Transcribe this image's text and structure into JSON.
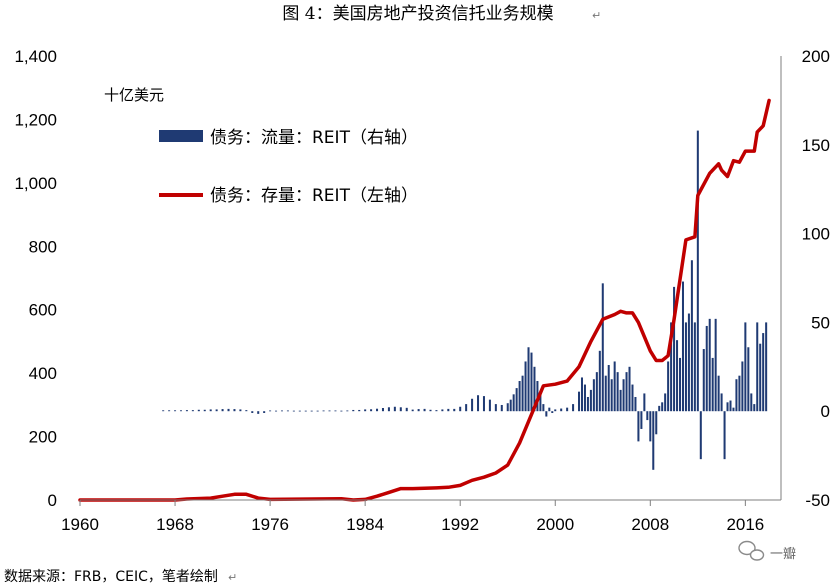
{
  "page": {
    "title": "图 4：美国房地产投资信托业务规模",
    "return_mark": "↵",
    "unit_label": "十亿美元",
    "source": "数据来源：FRB，CEIC，笔者绘制",
    "watermark": "一瓣"
  },
  "chart_data": {
    "type": "bar+line",
    "title": "图 4：美国房地产投资信托业务规模",
    "xlabel": "",
    "x_ticks": [
      1960,
      1968,
      1976,
      1984,
      1992,
      2000,
      2008,
      2016
    ],
    "xlim": [
      1960,
      2019
    ],
    "left_axis": {
      "ylim": [
        0,
        1400
      ],
      "ticks": [
        0,
        200,
        400,
        600,
        800,
        1000,
        1200,
        1400
      ],
      "tick_labels": [
        "0",
        "200",
        "400",
        "600",
        "800",
        "1,000",
        "1,200",
        "1,400"
      ]
    },
    "right_axis": {
      "ylim": [
        -50,
        200
      ],
      "ticks": [
        -50,
        0,
        50,
        100,
        150,
        200
      ],
      "tick_labels": [
        "-50",
        "0",
        "50",
        "100",
        "150",
        "200"
      ]
    },
    "grid": false,
    "legend_position": "top-left",
    "series": [
      {
        "name": "债务：流量：REIT（右轴）",
        "type": "bar",
        "axis": "right",
        "color": "#1f3a73",
        "points": [
          [
            1967.0,
            0.5
          ],
          [
            1967.5,
            0.5
          ],
          [
            1968.0,
            0.5
          ],
          [
            1968.5,
            0.5
          ],
          [
            1969.0,
            0.6
          ],
          [
            1969.5,
            0.6
          ],
          [
            1970.0,
            0.8
          ],
          [
            1970.5,
            0.8
          ],
          [
            1971.0,
            1.0
          ],
          [
            1971.5,
            1.0
          ],
          [
            1972.0,
            1.2
          ],
          [
            1972.5,
            1.3
          ],
          [
            1973.0,
            1.2
          ],
          [
            1973.5,
            1.0
          ],
          [
            1974.0,
            0.6
          ],
          [
            1974.5,
            -1.0
          ],
          [
            1975.0,
            -1.5
          ],
          [
            1975.5,
            -1.0
          ],
          [
            1976.0,
            0.4
          ],
          [
            1976.5,
            0.3
          ],
          [
            1977.0,
            0.4
          ],
          [
            1977.5,
            0.4
          ],
          [
            1978.0,
            0.3
          ],
          [
            1978.5,
            0.3
          ],
          [
            1979.0,
            0.3
          ],
          [
            1979.5,
            0.3
          ],
          [
            1980.0,
            0.3
          ],
          [
            1980.5,
            0.4
          ],
          [
            1981.0,
            0.4
          ],
          [
            1981.5,
            0.4
          ],
          [
            1982.0,
            0.3
          ],
          [
            1982.5,
            0.4
          ],
          [
            1983.0,
            0.7
          ],
          [
            1983.5,
            0.7
          ],
          [
            1984.0,
            1.0
          ],
          [
            1984.5,
            1.1
          ],
          [
            1985.0,
            1.4
          ],
          [
            1985.5,
            1.8
          ],
          [
            1986.0,
            2.2
          ],
          [
            1986.5,
            2.5
          ],
          [
            1987.0,
            2.2
          ],
          [
            1987.5,
            1.9
          ],
          [
            1988.0,
            0.9
          ],
          [
            1988.5,
            1.2
          ],
          [
            1989.0,
            1.3
          ],
          [
            1989.5,
            0.8
          ],
          [
            1990.0,
            0.6
          ],
          [
            1990.5,
            1.0
          ],
          [
            1991.0,
            1.3
          ],
          [
            1991.5,
            1.3
          ],
          [
            1992.0,
            2.5
          ],
          [
            1992.5,
            4.0
          ],
          [
            1993.0,
            7.0
          ],
          [
            1993.5,
            9.0
          ],
          [
            1994.0,
            8.5
          ],
          [
            1994.5,
            6.5
          ],
          [
            1995.0,
            4.0
          ],
          [
            1995.5,
            3.5
          ],
          [
            1996.0,
            4.5
          ],
          [
            1996.25,
            6.5
          ],
          [
            1996.5,
            9.5
          ],
          [
            1996.75,
            13.0
          ],
          [
            1997.0,
            17.0
          ],
          [
            1997.25,
            20.0
          ],
          [
            1997.5,
            28.0
          ],
          [
            1997.75,
            36.0
          ],
          [
            1998.0,
            33.0
          ],
          [
            1998.25,
            25.0
          ],
          [
            1998.5,
            17.0
          ],
          [
            1998.75,
            11.0
          ],
          [
            1999.0,
            4.0
          ],
          [
            1999.25,
            -3.0
          ],
          [
            1999.5,
            2.0
          ],
          [
            1999.75,
            -1.0
          ],
          [
            2000.0,
            1.0
          ],
          [
            2000.5,
            1.5
          ],
          [
            2001.0,
            2.0
          ],
          [
            2001.5,
            4.0
          ],
          [
            2002.0,
            11.0
          ],
          [
            2002.25,
            19.0
          ],
          [
            2002.5,
            15.0
          ],
          [
            2002.75,
            8.0
          ],
          [
            2003.0,
            12.0
          ],
          [
            2003.25,
            18.0
          ],
          [
            2003.5,
            22.0
          ],
          [
            2003.75,
            34.0
          ],
          [
            2004.0,
            72.0
          ],
          [
            2004.25,
            20.0
          ],
          [
            2004.5,
            26.0
          ],
          [
            2004.75,
            18.0
          ],
          [
            2005.0,
            28.0
          ],
          [
            2005.25,
            22.0
          ],
          [
            2005.5,
            12.0
          ],
          [
            2005.75,
            18.0
          ],
          [
            2006.0,
            22.0
          ],
          [
            2006.25,
            25.0
          ],
          [
            2006.5,
            15.0
          ],
          [
            2006.75,
            8.0
          ],
          [
            2007.0,
            -17.0
          ],
          [
            2007.25,
            -10.0
          ],
          [
            2007.5,
            10.0
          ],
          [
            2007.75,
            -5.0
          ],
          [
            2008.0,
            -17.0
          ],
          [
            2008.25,
            -33.0
          ],
          [
            2008.5,
            -13.0
          ],
          [
            2008.75,
            3.0
          ],
          [
            2009.0,
            5.0
          ],
          [
            2009.25,
            10.0
          ],
          [
            2009.5,
            28.0
          ],
          [
            2009.75,
            50.0
          ],
          [
            2010.0,
            70.0
          ],
          [
            2010.25,
            40.0
          ],
          [
            2010.5,
            30.0
          ],
          [
            2010.75,
            73.0
          ],
          [
            2011.0,
            50.0
          ],
          [
            2011.25,
            55.0
          ],
          [
            2011.5,
            85.0
          ],
          [
            2011.75,
            50.0
          ],
          [
            2012.0,
            158.0
          ],
          [
            2012.25,
            -27.0
          ],
          [
            2012.5,
            35.0
          ],
          [
            2012.75,
            48.0
          ],
          [
            2013.0,
            52.0
          ],
          [
            2013.25,
            30.0
          ],
          [
            2013.5,
            52.0
          ],
          [
            2013.75,
            20.0
          ],
          [
            2014.0,
            10.0
          ],
          [
            2014.25,
            -27.0
          ],
          [
            2014.5,
            5.0
          ],
          [
            2014.75,
            6.0
          ],
          [
            2015.0,
            2.0
          ],
          [
            2015.25,
            18.0
          ],
          [
            2015.5,
            20.0
          ],
          [
            2015.75,
            28.0
          ],
          [
            2016.0,
            50.0
          ],
          [
            2016.25,
            36.0
          ],
          [
            2016.5,
            10.0
          ],
          [
            2016.75,
            4.0
          ],
          [
            2017.0,
            50.0
          ],
          [
            2017.25,
            38.0
          ],
          [
            2017.5,
            44.0
          ],
          [
            2017.75,
            50.0
          ]
        ]
      },
      {
        "name": "债务：存量：REIT（左轴）",
        "type": "line",
        "axis": "left",
        "color": "#c00000",
        "points": [
          [
            1960,
            0
          ],
          [
            1968,
            0
          ],
          [
            1969,
            3
          ],
          [
            1971,
            6
          ],
          [
            1972,
            12
          ],
          [
            1973,
            18
          ],
          [
            1974,
            18
          ],
          [
            1975,
            6
          ],
          [
            1976,
            2
          ],
          [
            1982,
            4
          ],
          [
            1983,
            0
          ],
          [
            1984,
            2
          ],
          [
            1985,
            12
          ],
          [
            1986,
            24
          ],
          [
            1987,
            36
          ],
          [
            1988,
            36
          ],
          [
            1990,
            38
          ],
          [
            1991,
            40
          ],
          [
            1992,
            46
          ],
          [
            1993,
            62
          ],
          [
            1994,
            72
          ],
          [
            1995,
            85
          ],
          [
            1996,
            110
          ],
          [
            1997,
            180
          ],
          [
            1998,
            270
          ],
          [
            1999,
            360
          ],
          [
            2000,
            365
          ],
          [
            2001,
            375
          ],
          [
            2002,
            420
          ],
          [
            2003,
            500
          ],
          [
            2004,
            570
          ],
          [
            2005,
            585
          ],
          [
            2005.5,
            595
          ],
          [
            2006,
            590
          ],
          [
            2006.5,
            590
          ],
          [
            2007,
            560
          ],
          [
            2008,
            470
          ],
          [
            2008.5,
            440
          ],
          [
            2009,
            440
          ],
          [
            2009.5,
            455
          ],
          [
            2010,
            570
          ],
          [
            2011,
            820
          ],
          [
            2011.75,
            830
          ],
          [
            2012,
            960
          ],
          [
            2013,
            1030
          ],
          [
            2013.75,
            1060
          ],
          [
            2014,
            1040
          ],
          [
            2014.5,
            1020
          ],
          [
            2015,
            1070
          ],
          [
            2015.5,
            1065
          ],
          [
            2016,
            1100
          ],
          [
            2016.75,
            1100
          ],
          [
            2017,
            1160
          ],
          [
            2017.5,
            1180
          ],
          [
            2018,
            1260
          ]
        ]
      }
    ]
  }
}
